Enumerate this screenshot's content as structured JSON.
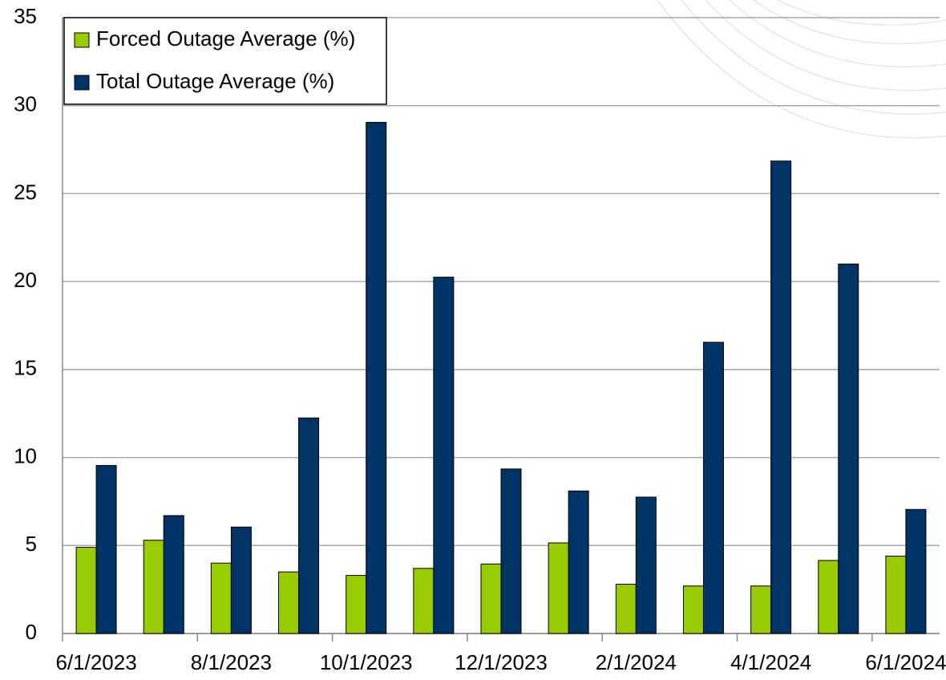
{
  "chart_data": {
    "type": "bar",
    "categories": [
      "6/1/2023",
      null,
      "8/1/2023",
      null,
      "10/1/2023",
      null,
      "12/1/2023",
      null,
      "2/1/2024",
      null,
      "4/1/2024",
      null,
      "6/1/2024"
    ],
    "series": [
      {
        "name": "Forced Outage Average (%)",
        "color": "#99cc00",
        "values": [
          4.9,
          5.3,
          4.0,
          3.5,
          3.3,
          3.7,
          3.95,
          5.15,
          2.8,
          2.7,
          2.7,
          4.15,
          4.4
        ]
      },
      {
        "name": "Total Outage Average (%)",
        "color": "#003366",
        "values": [
          9.55,
          6.7,
          6.05,
          12.25,
          29.05,
          20.25,
          9.35,
          8.1,
          7.75,
          16.55,
          26.85,
          21.0,
          7.05
        ]
      }
    ],
    "ylim": [
      0,
      35
    ],
    "yticks": [
      0,
      5,
      10,
      15,
      20,
      25,
      30,
      35
    ],
    "grid": true,
    "legend": "top-left"
  }
}
